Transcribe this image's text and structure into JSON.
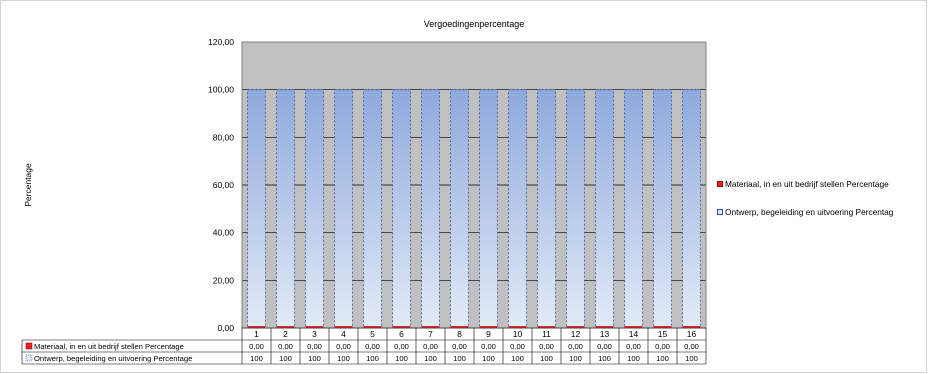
{
  "chart_data": {
    "type": "bar",
    "title": "Vergoedingenpercentage",
    "xlabel": "",
    "ylabel": "Percentage",
    "ylim": [
      0,
      120
    ],
    "yticks": [
      "0,00",
      "20,00",
      "40,00",
      "60,00",
      "80,00",
      "100,00",
      "120,00"
    ],
    "categories": [
      "1",
      "2",
      "3",
      "4",
      "5",
      "6",
      "7",
      "8",
      "9",
      "10",
      "11",
      "12",
      "13",
      "14",
      "15",
      "16"
    ],
    "grid": true,
    "legend_position": "right",
    "series": [
      {
        "name": "Materiaal, in en uit bedrijf stellen Percentage",
        "values": [
          0,
          0,
          0,
          0,
          0,
          0,
          0,
          0,
          0,
          0,
          0,
          0,
          0,
          0,
          0,
          0
        ],
        "table_values": [
          "0,00",
          "0,00",
          "0,00",
          "0,00",
          "0,00",
          "0,00",
          "0,00",
          "0,00",
          "0,00",
          "0,00",
          "0,00",
          "0,00",
          "0,00",
          "0,00",
          "0,00",
          "0,00"
        ],
        "color": "#e8202a"
      },
      {
        "name": "Ontwerp, begeleiding en uitvoering Percentage",
        "values": [
          100,
          100,
          100,
          100,
          100,
          100,
          100,
          100,
          100,
          100,
          100,
          100,
          100,
          100,
          100,
          100
        ],
        "table_values": [
          "100",
          "100",
          "100",
          "100",
          "100",
          "100",
          "100",
          "100",
          "100",
          "100",
          "100",
          "100",
          "100",
          "100",
          "100",
          "100"
        ],
        "color": "#9db7e6"
      }
    ],
    "colors": {
      "plot_background": "#c0c0c0",
      "gridline": "#000000",
      "bar_gradient_top": "#8ea9dc",
      "bar_gradient_bottom": "#e2ebf7",
      "bar_outline": "#3a4ea6"
    }
  },
  "legend": {
    "items": [
      {
        "label": "Materiaal, in en uit bedrijf stellen Percentage"
      },
      {
        "label": "Ontwerp, begeleiding en uitvoering Percentag"
      }
    ]
  }
}
